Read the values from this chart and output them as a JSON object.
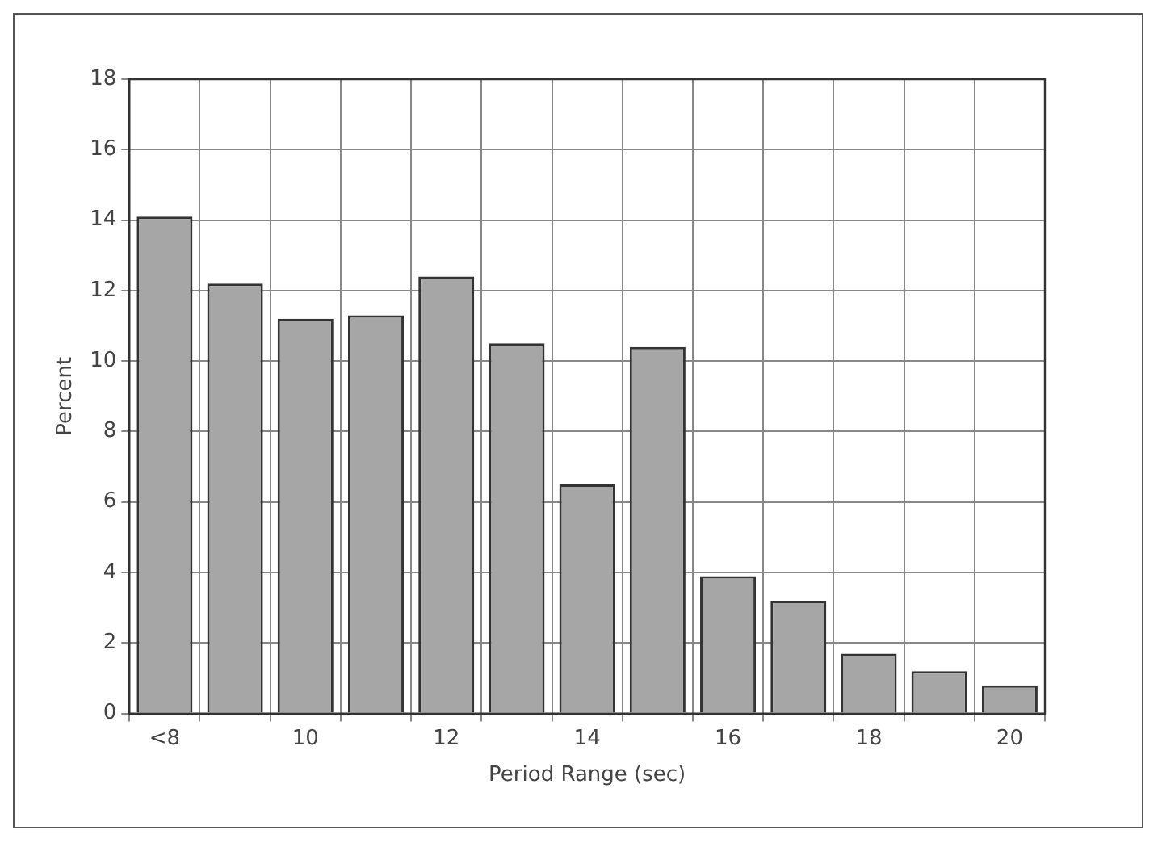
{
  "chart_data": {
    "type": "bar",
    "xlabel": "Period Range (sec)",
    "ylabel": "Percent",
    "categories": [
      "<8",
      null,
      "10",
      null,
      "12",
      null,
      "14",
      null,
      "16",
      null,
      "18",
      null,
      "20"
    ],
    "values": [
      14.1,
      12.2,
      11.2,
      11.3,
      12.4,
      10.5,
      6.5,
      10.4,
      3.9,
      3.2,
      1.7,
      1.2,
      0.8
    ],
    "color": "#a6a6a6",
    "ylim": [
      0,
      18
    ],
    "yticks": [
      0,
      2,
      4,
      6,
      8,
      10,
      12,
      14,
      16,
      18
    ],
    "grid": true
  }
}
